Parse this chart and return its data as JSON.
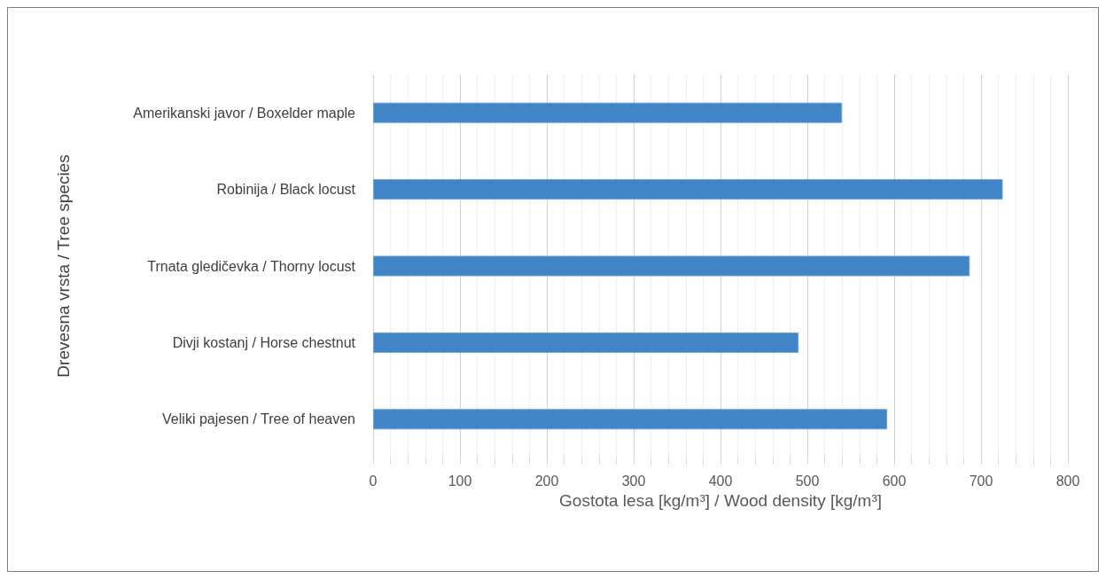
{
  "chart_data": {
    "type": "bar",
    "orientation": "horizontal",
    "xlabel": "Gostota lesa [kg/m³] / Wood density [kg/m³]",
    "ylabel": "Drevesna vrsta / Tree species",
    "categories": [
      "Amerikanski javor / Boxelder maple",
      "Robinija / Black locust",
      "Trnata gledičevka / Thorny locust",
      "Divji kostanj / Horse chestnut",
      "Veliki pajesen / Tree of heaven"
    ],
    "values": [
      540,
      725,
      687,
      490,
      592
    ],
    "color": "#4285c6",
    "xlim": [
      0,
      800
    ],
    "xticks": [
      0,
      {
        "value": 20,
        "label": null
      },
      {
        "value": 40,
        "label": null
      },
      {
        "value": 60,
        "label": null
      },
      {
        "value": 80,
        "label": null
      },
      100,
      {
        "value": 120,
        "label": null
      },
      {
        "value": 140,
        "label": null
      },
      {
        "value": 160,
        "label": null
      },
      {
        "value": 180,
        "label": null
      },
      200,
      {
        "value": 220,
        "label": null
      },
      {
        "value": 240,
        "label": null
      },
      {
        "value": 260,
        "label": null
      },
      {
        "value": 280,
        "label": null
      },
      300,
      {
        "value": 320,
        "label": null
      },
      {
        "value": 340,
        "label": null
      },
      {
        "value": 360,
        "label": null
      },
      {
        "value": 380,
        "label": null
      },
      400,
      {
        "value": 420,
        "label": null
      },
      {
        "value": 440,
        "label": null
      },
      {
        "value": 460,
        "label": null
      },
      {
        "value": 480,
        "label": null
      },
      500,
      {
        "value": 520,
        "label": null
      },
      {
        "value": 540,
        "label": null
      },
      {
        "value": 560,
        "label": null
      },
      {
        "value": 580,
        "label": null
      },
      600,
      {
        "value": 620,
        "label": null
      },
      {
        "value": 640,
        "label": null
      },
      {
        "value": 660,
        "label": null
      },
      {
        "value": 680,
        "label": null
      },
      700,
      {
        "value": 720,
        "label": null
      },
      {
        "value": 740,
        "label": null
      },
      {
        "value": 760,
        "label": null
      },
      {
        "value": 780,
        "label": null
      },
      800
    ],
    "grid": "x"
  }
}
